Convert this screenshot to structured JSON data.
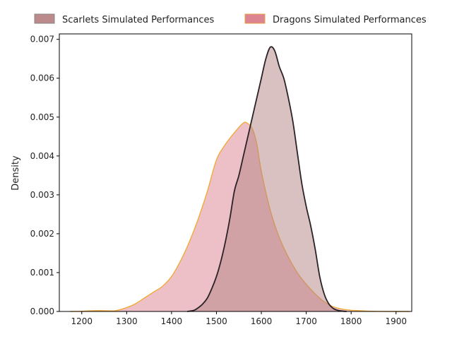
{
  "chart_data": {
    "type": "area",
    "subtype": "kde",
    "title": "",
    "xlabel": "",
    "ylabel": "Density",
    "xlim": [
      1150,
      1935
    ],
    "ylim": [
      0,
      0.00714
    ],
    "xticks": [
      1200,
      1300,
      1400,
      1500,
      1600,
      1700,
      1800,
      1900
    ],
    "xtick_labels": [
      "1200",
      "1300",
      "1400",
      "1500",
      "1600",
      "1700",
      "1800",
      "1900"
    ],
    "yticks": [
      0,
      0.001,
      0.002,
      0.003,
      0.004,
      0.005,
      0.006,
      0.007
    ],
    "ytick_labels": [
      "0.000",
      "0.001",
      "0.002",
      "0.003",
      "0.004",
      "0.005",
      "0.006",
      "0.007"
    ],
    "grid": false,
    "legend_position": "top-center-outside",
    "series": [
      {
        "name": "Scarlets Simulated Performances",
        "fill": "#b48484",
        "fill_opacity": 0.5,
        "legend_fill": "#bc8a8a",
        "line": "#2b2226",
        "points": [
          [
            1435,
            0
          ],
          [
            1450,
            3e-05
          ],
          [
            1460,
            0.0001
          ],
          [
            1470,
            0.0002
          ],
          [
            1480,
            0.00035
          ],
          [
            1490,
            0.0006
          ],
          [
            1500,
            0.0009
          ],
          [
            1510,
            0.0013
          ],
          [
            1520,
            0.0018
          ],
          [
            1530,
            0.0024
          ],
          [
            1540,
            0.0031
          ],
          [
            1550,
            0.0035
          ],
          [
            1560,
            0.004
          ],
          [
            1570,
            0.0045
          ],
          [
            1580,
            0.005
          ],
          [
            1590,
            0.0055
          ],
          [
            1600,
            0.006
          ],
          [
            1610,
            0.0065
          ],
          [
            1620,
            0.0068
          ],
          [
            1630,
            0.0067
          ],
          [
            1640,
            0.0063
          ],
          [
            1650,
            0.006
          ],
          [
            1660,
            0.0055
          ],
          [
            1670,
            0.0049
          ],
          [
            1680,
            0.0041
          ],
          [
            1690,
            0.0033
          ],
          [
            1700,
            0.0027
          ],
          [
            1710,
            0.0022
          ],
          [
            1720,
            0.0016
          ],
          [
            1730,
            0.0009
          ],
          [
            1740,
            0.00045
          ],
          [
            1750,
            0.0002
          ],
          [
            1760,
            8e-05
          ],
          [
            1770,
            3e-05
          ],
          [
            1780,
            1e-05
          ],
          [
            1790,
            0
          ]
        ]
      },
      {
        "name": "Dragons Simulated Performances",
        "fill": "#de8c99",
        "fill_opacity": 0.55,
        "legend_fill": "#dc8490",
        "line": "#f2a93b",
        "points": [
          [
            1175,
            0
          ],
          [
            1200,
            5e-06
          ],
          [
            1225,
            2e-05
          ],
          [
            1250,
            2e-05
          ],
          [
            1275,
            2e-05
          ],
          [
            1300,
            0.0001
          ],
          [
            1320,
            0.0002
          ],
          [
            1340,
            0.00035
          ],
          [
            1360,
            0.0005
          ],
          [
            1380,
            0.00065
          ],
          [
            1400,
            0.0009
          ],
          [
            1420,
            0.0013
          ],
          [
            1440,
            0.0018
          ],
          [
            1460,
            0.0024
          ],
          [
            1480,
            0.0031
          ],
          [
            1500,
            0.0039
          ],
          [
            1520,
            0.0043
          ],
          [
            1540,
            0.0046
          ],
          [
            1560,
            0.00485
          ],
          [
            1570,
            0.00483
          ],
          [
            1580,
            0.0047
          ],
          [
            1590,
            0.0043
          ],
          [
            1600,
            0.0036
          ],
          [
            1620,
            0.0026
          ],
          [
            1640,
            0.0019
          ],
          [
            1660,
            0.0014
          ],
          [
            1680,
            0.001
          ],
          [
            1700,
            0.0007
          ],
          [
            1720,
            0.00045
          ],
          [
            1740,
            0.00025
          ],
          [
            1760,
            0.00012
          ],
          [
            1780,
            6e-05
          ],
          [
            1800,
            3e-05
          ],
          [
            1820,
            2e-05
          ],
          [
            1850,
            5e-06
          ],
          [
            1900,
            0
          ],
          [
            1930,
            0
          ]
        ]
      }
    ]
  }
}
